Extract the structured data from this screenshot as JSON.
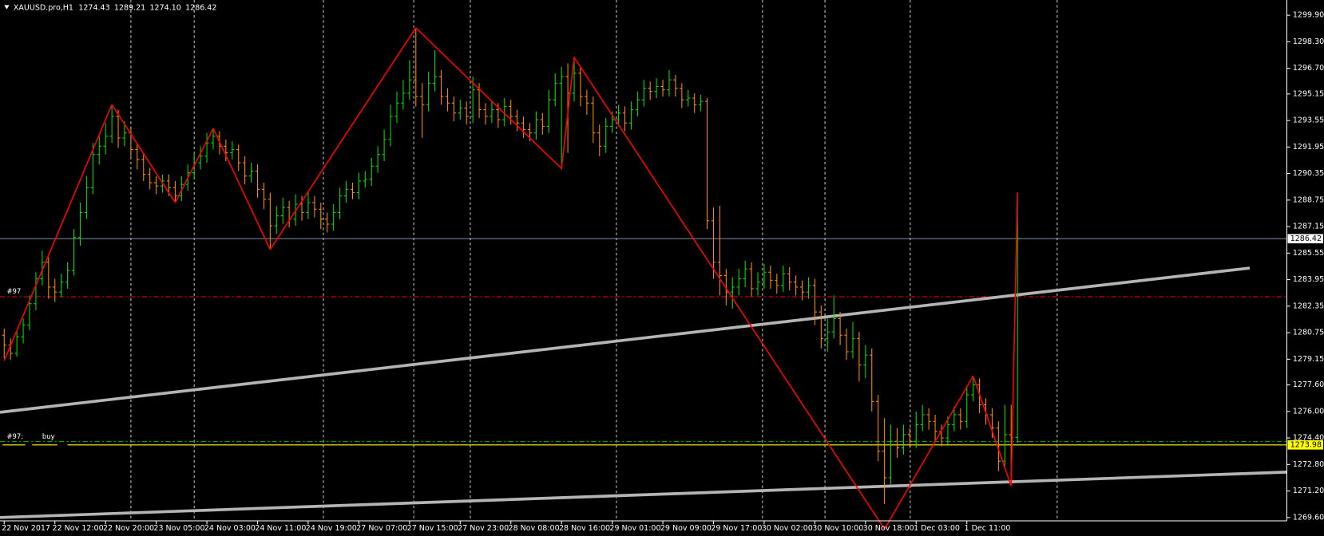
{
  "chart_data": {
    "type": "ohlc",
    "symbol": "XAUUSD.pro,H1",
    "header_values": [
      "1274.43",
      "1289.21",
      "1274.10",
      "1286.42"
    ],
    "time_labels": [
      "22 Nov 2017",
      "22 Nov 12:00",
      "22 Nov 20:00",
      "23 Nov 05:00",
      "24 Nov 03:00",
      "24 Nov 11:00",
      "24 Nov 19:00",
      "27 Nov 07:00",
      "27 Nov 15:00",
      "27 Nov 23:00",
      "28 Nov 08:00",
      "28 Nov 16:00",
      "29 Nov 01:00",
      "29 Nov 09:00",
      "29 Nov 17:00",
      "30 Nov 02:00",
      "30 Nov 10:00",
      "30 Nov 18:00",
      "1 Dec 03:00",
      "1 Dec 11:00"
    ],
    "up_color": "#00e000",
    "down_color": "#ff8c00",
    "ohlc": [
      [
        1280.6,
        1281.0,
        1279.2,
        1280.0
      ],
      [
        1280.0,
        1280.4,
        1279.1,
        1279.5
      ],
      [
        1279.5,
        1280.9,
        1279.3,
        1280.5
      ],
      [
        1280.5,
        1281.6,
        1280.1,
        1281.2
      ],
      [
        1281.2,
        1283.0,
        1280.9,
        1282.5
      ],
      [
        1282.5,
        1284.4,
        1282.1,
        1284.0
      ],
      [
        1284.0,
        1285.7,
        1283.6,
        1285.0
      ],
      [
        1285.0,
        1285.3,
        1282.8,
        1283.5
      ],
      [
        1283.5,
        1284.0,
        1282.6,
        1283.2
      ],
      [
        1283.2,
        1284.3,
        1282.9,
        1283.8
      ],
      [
        1283.8,
        1285.0,
        1283.4,
        1284.5
      ],
      [
        1284.5,
        1287.0,
        1284.2,
        1286.5
      ],
      [
        1286.5,
        1288.6,
        1286.0,
        1288.0
      ],
      [
        1288.0,
        1290.2,
        1287.6,
        1289.5
      ],
      [
        1289.5,
        1292.2,
        1289.1,
        1291.5
      ],
      [
        1291.5,
        1292.6,
        1290.9,
        1292.0
      ],
      [
        1292.0,
        1293.4,
        1291.5,
        1292.6
      ],
      [
        1292.6,
        1294.5,
        1292.2,
        1293.8
      ],
      [
        1293.8,
        1294.2,
        1291.9,
        1292.5
      ],
      [
        1292.5,
        1293.5,
        1292.0,
        1292.8
      ],
      [
        1292.8,
        1293.1,
        1291.3,
        1291.8
      ],
      [
        1291.8,
        1292.2,
        1290.6,
        1291.2
      ],
      [
        1291.2,
        1291.6,
        1289.9,
        1290.3
      ],
      [
        1290.3,
        1290.7,
        1289.4,
        1289.8
      ],
      [
        1289.8,
        1290.2,
        1289.1,
        1289.6
      ],
      [
        1289.6,
        1290.3,
        1289.2,
        1289.9
      ],
      [
        1289.9,
        1290.3,
        1289.0,
        1289.5
      ],
      [
        1289.5,
        1289.9,
        1288.6,
        1289.0
      ],
      [
        1289.0,
        1290.2,
        1288.7,
        1289.7
      ],
      [
        1289.7,
        1290.9,
        1289.3,
        1290.4
      ],
      [
        1290.4,
        1291.6,
        1290.0,
        1291.0
      ],
      [
        1291.0,
        1292.0,
        1290.6,
        1291.4
      ],
      [
        1291.4,
        1292.8,
        1291.0,
        1292.2
      ],
      [
        1292.2,
        1293.1,
        1291.8,
        1292.6
      ],
      [
        1292.6,
        1292.9,
        1291.5,
        1292.0
      ],
      [
        1292.0,
        1292.4,
        1291.1,
        1291.6
      ],
      [
        1291.6,
        1292.3,
        1291.2,
        1291.8
      ],
      [
        1291.8,
        1292.1,
        1290.5,
        1291.0
      ],
      [
        1291.0,
        1291.4,
        1289.7,
        1290.2
      ],
      [
        1290.2,
        1291.0,
        1289.8,
        1290.5
      ],
      [
        1290.5,
        1290.9,
        1288.9,
        1289.4
      ],
      [
        1289.4,
        1289.8,
        1288.2,
        1288.8
      ],
      [
        1288.8,
        1289.2,
        1285.8,
        1287.2
      ],
      [
        1287.2,
        1288.4,
        1286.7,
        1287.8
      ],
      [
        1287.8,
        1288.9,
        1287.3,
        1288.3
      ],
      [
        1288.3,
        1288.7,
        1287.1,
        1287.6
      ],
      [
        1287.6,
        1289.1,
        1287.2,
        1288.5
      ],
      [
        1288.5,
        1289.0,
        1287.5,
        1288.0
      ],
      [
        1288.0,
        1289.2,
        1287.6,
        1288.6
      ],
      [
        1288.6,
        1289.0,
        1287.7,
        1288.2
      ],
      [
        1288.2,
        1288.6,
        1287.0,
        1287.6
      ],
      [
        1287.6,
        1288.0,
        1286.8,
        1287.3
      ],
      [
        1287.3,
        1288.5,
        1286.9,
        1288.0
      ],
      [
        1288.0,
        1289.5,
        1287.6,
        1289.0
      ],
      [
        1289.0,
        1289.9,
        1288.6,
        1289.4
      ],
      [
        1289.4,
        1289.8,
        1288.8,
        1289.2
      ],
      [
        1289.2,
        1290.4,
        1288.8,
        1289.9
      ],
      [
        1289.9,
        1290.5,
        1289.5,
        1290.0
      ],
      [
        1290.0,
        1291.3,
        1289.6,
        1290.8
      ],
      [
        1290.8,
        1292.0,
        1290.4,
        1291.5
      ],
      [
        1291.5,
        1293.0,
        1291.1,
        1292.4
      ],
      [
        1292.4,
        1294.5,
        1292.0,
        1293.8
      ],
      [
        1293.8,
        1295.3,
        1293.4,
        1294.6
      ],
      [
        1294.6,
        1296.0,
        1294.2,
        1295.2
      ],
      [
        1295.2,
        1297.2,
        1294.8,
        1296.0
      ],
      [
        1296.0,
        1299.1,
        1294.4,
        1295.0
      ],
      [
        1295.0,
        1295.8,
        1292.5,
        1294.5
      ],
      [
        1294.5,
        1296.5,
        1294.1,
        1295.8
      ],
      [
        1295.8,
        1297.8,
        1295.3,
        1296.2
      ],
      [
        1296.2,
        1296.6,
        1294.5,
        1295.0
      ],
      [
        1295.0,
        1295.5,
        1294.1,
        1294.6
      ],
      [
        1294.6,
        1295.0,
        1293.5,
        1294.0
      ],
      [
        1294.0,
        1294.8,
        1293.6,
        1294.3
      ],
      [
        1294.3,
        1294.7,
        1293.3,
        1293.8
      ],
      [
        1293.8,
        1296.2,
        1293.4,
        1295.4
      ],
      [
        1295.4,
        1295.8,
        1293.7,
        1294.2
      ],
      [
        1294.2,
        1294.6,
        1293.3,
        1293.8
      ],
      [
        1293.8,
        1294.7,
        1293.4,
        1294.2
      ],
      [
        1294.2,
        1294.6,
        1293.1,
        1293.6
      ],
      [
        1293.6,
        1294.9,
        1293.2,
        1294.4
      ],
      [
        1294.4,
        1294.8,
        1293.3,
        1293.8
      ],
      [
        1293.8,
        1294.2,
        1292.9,
        1293.4
      ],
      [
        1293.4,
        1293.8,
        1292.5,
        1293.0
      ],
      [
        1293.0,
        1293.4,
        1292.3,
        1292.8
      ],
      [
        1292.8,
        1294.1,
        1292.4,
        1293.6
      ],
      [
        1293.6,
        1294.0,
        1292.7,
        1293.2
      ],
      [
        1293.2,
        1295.4,
        1292.8,
        1294.8
      ],
      [
        1294.8,
        1296.4,
        1294.4,
        1295.8
      ],
      [
        1295.8,
        1296.8,
        1290.6,
        1296.2
      ],
      [
        1296.2,
        1297.0,
        1291.6,
        1295.2
      ],
      [
        1295.2,
        1297.4,
        1294.7,
        1296.4
      ],
      [
        1296.4,
        1296.8,
        1294.4,
        1295.0
      ],
      [
        1295.0,
        1295.4,
        1293.9,
        1294.6
      ],
      [
        1294.6,
        1295.0,
        1292.2,
        1292.8
      ],
      [
        1292.8,
        1293.3,
        1291.4,
        1292.0
      ],
      [
        1292.0,
        1293.7,
        1291.6,
        1293.2
      ],
      [
        1293.2,
        1294.1,
        1292.8,
        1293.6
      ],
      [
        1293.6,
        1294.5,
        1293.2,
        1294.0
      ],
      [
        1294.0,
        1294.4,
        1292.9,
        1293.4
      ],
      [
        1293.4,
        1294.7,
        1293.0,
        1294.2
      ],
      [
        1294.2,
        1295.3,
        1293.8,
        1294.8
      ],
      [
        1294.8,
        1296.0,
        1294.4,
        1295.5
      ],
      [
        1295.5,
        1295.9,
        1294.8,
        1295.3
      ],
      [
        1295.3,
        1296.1,
        1294.9,
        1295.6
      ],
      [
        1295.6,
        1296.0,
        1295.0,
        1295.4
      ],
      [
        1295.4,
        1296.6,
        1295.0,
        1296.0
      ],
      [
        1296.0,
        1296.3,
        1295.0,
        1295.5
      ],
      [
        1295.5,
        1295.8,
        1294.3,
        1294.8
      ],
      [
        1294.8,
        1295.4,
        1294.4,
        1294.9
      ],
      [
        1294.9,
        1295.2,
        1294.0,
        1294.5
      ],
      [
        1294.5,
        1295.1,
        1294.1,
        1294.7
      ],
      [
        1294.7,
        1294.9,
        1287.0,
        1287.5
      ],
      [
        1287.5,
        1288.3,
        1284.0,
        1285.0
      ],
      [
        1285.0,
        1288.4,
        1283.0,
        1284.2
      ],
      [
        1284.2,
        1284.6,
        1282.4,
        1283.2
      ],
      [
        1283.2,
        1284.1,
        1282.2,
        1283.5
      ],
      [
        1283.5,
        1284.6,
        1283.0,
        1284.0
      ],
      [
        1284.0,
        1285.1,
        1283.5,
        1284.6
      ],
      [
        1284.6,
        1285.0,
        1282.9,
        1283.4
      ],
      [
        1283.4,
        1284.4,
        1283.0,
        1283.8
      ],
      [
        1283.8,
        1284.9,
        1283.4,
        1284.4
      ],
      [
        1284.4,
        1284.8,
        1283.4,
        1283.9
      ],
      [
        1283.9,
        1284.3,
        1283.1,
        1283.6
      ],
      [
        1283.6,
        1284.8,
        1283.2,
        1284.3
      ],
      [
        1284.3,
        1284.7,
        1283.3,
        1283.8
      ],
      [
        1283.8,
        1284.2,
        1283.0,
        1283.5
      ],
      [
        1283.5,
        1283.9,
        1282.7,
        1283.2
      ],
      [
        1283.2,
        1284.1,
        1282.8,
        1283.6
      ],
      [
        1283.6,
        1284.0,
        1281.2,
        1282.0
      ],
      [
        1282.0,
        1282.4,
        1279.8,
        1280.4
      ],
      [
        1280.4,
        1281.6,
        1279.6,
        1280.8
      ],
      [
        1280.8,
        1283.0,
        1280.4,
        1281.6
      ],
      [
        1281.6,
        1282.0,
        1280.0,
        1280.6
      ],
      [
        1280.6,
        1281.0,
        1279.1,
        1279.6
      ],
      [
        1279.6,
        1281.4,
        1279.2,
        1280.4
      ],
      [
        1280.4,
        1280.8,
        1277.8,
        1278.8
      ],
      [
        1278.8,
        1280.0,
        1278.0,
        1279.4
      ],
      [
        1279.4,
        1279.8,
        1276.0,
        1276.6
      ],
      [
        1276.6,
        1277.0,
        1273.0,
        1273.6
      ],
      [
        1273.6,
        1275.6,
        1270.4,
        1272.0
      ],
      [
        1272.0,
        1275.2,
        1271.6,
        1274.2
      ],
      [
        1274.2,
        1275.0,
        1273.2,
        1273.8
      ],
      [
        1273.8,
        1275.2,
        1273.4,
        1274.6
      ],
      [
        1274.6,
        1275.0,
        1273.8,
        1274.2
      ],
      [
        1274.2,
        1276.0,
        1273.8,
        1275.2
      ],
      [
        1275.2,
        1276.4,
        1274.8,
        1275.8
      ],
      [
        1275.8,
        1276.2,
        1274.9,
        1275.4
      ],
      [
        1275.4,
        1275.8,
        1274.2,
        1274.8
      ],
      [
        1274.8,
        1275.2,
        1273.9,
        1274.4
      ],
      [
        1274.4,
        1275.7,
        1274.0,
        1275.2
      ],
      [
        1275.2,
        1276.3,
        1274.8,
        1275.8
      ],
      [
        1275.8,
        1276.2,
        1274.9,
        1275.4
      ],
      [
        1275.4,
        1277.5,
        1275.0,
        1277.0
      ],
      [
        1277.0,
        1278.1,
        1276.6,
        1277.6
      ],
      [
        1277.6,
        1278.0,
        1275.9,
        1276.4
      ],
      [
        1276.4,
        1276.8,
        1275.2,
        1275.8
      ],
      [
        1275.8,
        1276.2,
        1274.4,
        1275.0
      ],
      [
        1275.0,
        1275.4,
        1272.4,
        1273.0
      ],
      [
        1273.0,
        1276.4,
        1272.6,
        1274.6
      ],
      [
        1274.6,
        1276.4,
        1271.5,
        1274.4
      ],
      [
        1274.43,
        1289.21,
        1274.1,
        1286.42
      ]
    ],
    "zigzag": {
      "color": "#ff0000",
      "values": [
        1279.06,
        null,
        null,
        null,
        null,
        null,
        null,
        null,
        null,
        null,
        null,
        null,
        null,
        null,
        null,
        null,
        null,
        1294.51,
        null,
        null,
        null,
        null,
        null,
        null,
        null,
        null,
        null,
        1288.6,
        null,
        null,
        null,
        null,
        null,
        1293.07,
        null,
        null,
        null,
        null,
        null,
        null,
        null,
        null,
        1285.77,
        null,
        null,
        null,
        null,
        null,
        null,
        null,
        null,
        null,
        null,
        null,
        null,
        null,
        null,
        null,
        null,
        null,
        null,
        null,
        null,
        null,
        null,
        1299.14,
        null,
        null,
        null,
        null,
        null,
        null,
        null,
        null,
        null,
        null,
        null,
        null,
        null,
        null,
        null,
        null,
        null,
        null,
        null,
        null,
        null,
        null,
        1290.65,
        null,
        1297.36,
        null,
        null,
        null,
        null,
        null,
        null,
        null,
        null,
        null,
        null,
        null,
        null,
        null,
        null,
        null,
        null,
        null,
        null,
        null,
        null,
        null,
        null,
        null,
        null,
        null,
        null,
        null,
        null,
        null,
        null,
        null,
        null,
        null,
        null,
        null,
        null,
        null,
        null,
        null,
        null,
        null,
        null,
        null,
        null,
        null,
        null,
        null,
        null,
        1268.9,
        null,
        null,
        null,
        null,
        null,
        null,
        null,
        null,
        null,
        null,
        null,
        null,
        null,
        1278.14,
        null,
        null,
        null,
        null,
        null,
        1271.5,
        1289.21
      ]
    },
    "trendlines": [
      {
        "color": "#b4b4b4",
        "values": [
          1275.95,
          1284.65
        ]
      },
      {
        "color": "#b4b4b4",
        "values": [
          1269.6,
          1272.34
        ]
      }
    ],
    "levels": [
      {
        "value": 1286.42,
        "color": "#8090a4",
        "box": "#ffffff"
      },
      {
        "value": 1273.98,
        "color": "#ffff00",
        "box": "#ffff00"
      }
    ],
    "orders": [
      {
        "label": "#97",
        "value": 1282.92,
        "color": "#ff0000"
      },
      {
        "label": "#97:",
        "side": "buy",
        "value": 1274.18,
        "color": "#00c000"
      }
    ],
    "ylim": [
      1269.4,
      1300.82
    ],
    "yticks": [
      {
        "value": 1299.9,
        "label": "1299.90"
      },
      {
        "value": 1298.3,
        "label": "1298.30"
      },
      {
        "value": 1296.7,
        "label": "1296.70"
      },
      1295.15,
      1293.55,
      1291.95,
      1290.35,
      1288.75,
      1287.15,
      1285.55,
      1283.95,
      1282.35,
      1280.75,
      1279.15,
      {
        "value": 1277.6,
        "label": "1277.60"
      },
      {
        "value": 1276,
        "label": "1276.00"
      },
      {
        "value": 1274.4,
        "label": "1274.40"
      },
      {
        "value": 1272.8,
        "label": "1272.80"
      },
      {
        "value": 1271.2,
        "label": "1271.20"
      },
      {
        "value": 1269.6,
        "label": "1269.60"
      }
    ]
  }
}
